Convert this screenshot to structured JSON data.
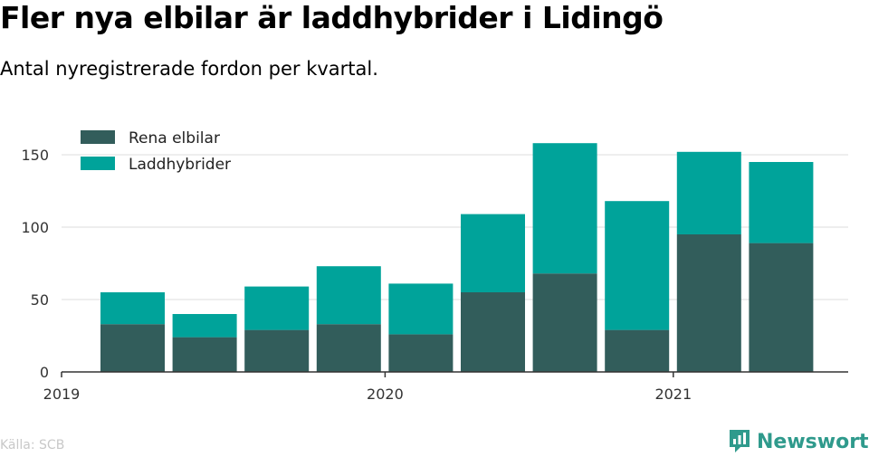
{
  "title": "Fler nya elbilar är laddhybrider i Lidingö",
  "subtitle": "Antal nyregistrerade fordon per kvartal.",
  "source": "Källa: SCB",
  "brand": "Newsworthy",
  "colors": {
    "rena_elbilar": "#325d5b",
    "laddhybrider": "#00a39a",
    "grid": "#dddddd",
    "brand": "#2f9a8c"
  },
  "chart_data": {
    "type": "bar",
    "stacked": true,
    "categories": [
      "2019 Q2",
      "2019 Q3",
      "2019 Q4",
      "2020 Q1",
      "2020 Q2",
      "2020 Q3",
      "2020 Q4",
      "2021 Q1",
      "2021 Q2",
      "2021 Q3"
    ],
    "series": [
      {
        "name": "Rena elbilar",
        "values": [
          33,
          24,
          29,
          33,
          26,
          55,
          68,
          29,
          95,
          89
        ]
      },
      {
        "name": "Laddhybrider",
        "values": [
          22,
          16,
          30,
          40,
          35,
          54,
          90,
          89,
          57,
          56
        ]
      }
    ],
    "x_ticks": [
      {
        "label": "2019",
        "position": 0
      },
      {
        "label": "2020",
        "position": 4
      },
      {
        "label": "2021",
        "position": 8
      }
    ],
    "y_ticks": [
      0,
      50,
      100,
      150
    ],
    "ylim": [
      0,
      165
    ],
    "legend_position": "top-left",
    "grid": true
  }
}
